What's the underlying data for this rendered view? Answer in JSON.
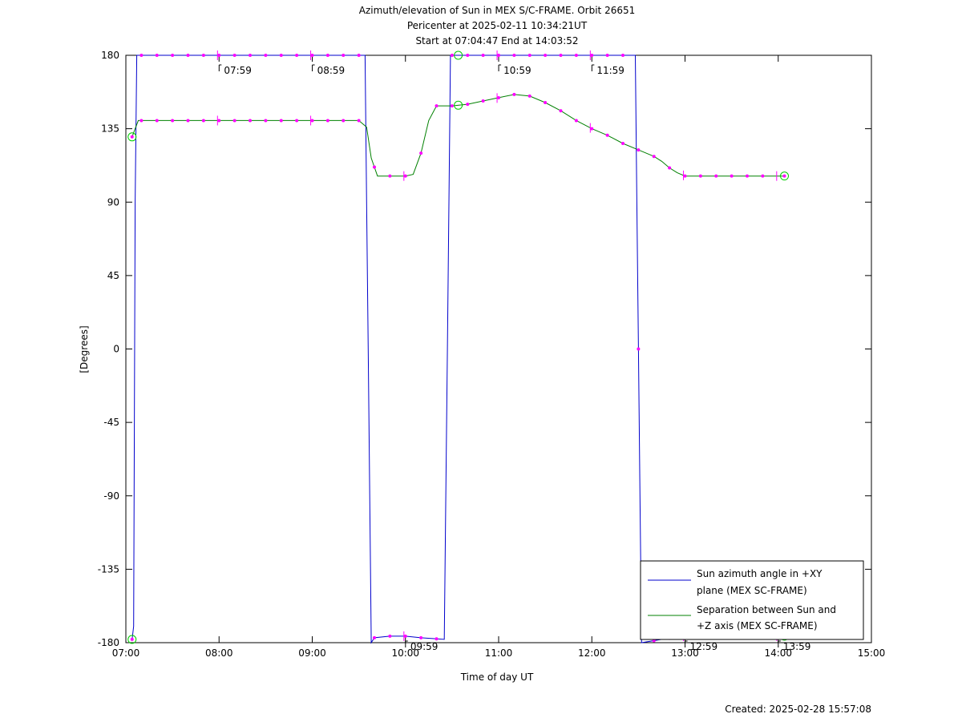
{
  "title_lines": [
    "Azimuth/elevation of Sun in MEX S/C-FRAME.  Orbit 26651",
    "Pericenter at 2025-02-11 10:34:21UT",
    "Start at 07:04:47 End at 14:03:52"
  ],
  "footer": {
    "created": "Created: 2025-02-28 15:57:08"
  },
  "chart_data": {
    "type": "line",
    "xlabel": "Time of day UT",
    "ylabel": "[Degrees]",
    "xlim": [
      "07:00",
      "15:00"
    ],
    "ylim": [
      -180,
      180
    ],
    "x_ticks": [
      "07:00",
      "08:00",
      "09:00",
      "10:00",
      "11:00",
      "12:00",
      "13:00",
      "14:00",
      "15:00"
    ],
    "y_ticks": [
      180,
      135,
      90,
      45,
      0,
      -45,
      -90,
      -135,
      -180
    ],
    "grid": false,
    "legend_position": "bottom-right",
    "series": [
      {
        "name": "Sun azimuth angle in +XY plane (MEX SC-FRAME)",
        "legend_lines": [
          "Sun azimuth angle in +XY",
          "plane (MEX SC-FRAME)"
        ],
        "color": "#0000cc",
        "points": [
          [
            "07:04",
            -178
          ],
          [
            "07:05",
            -170
          ],
          [
            "07:06",
            90
          ],
          [
            "07:07",
            180
          ],
          [
            "07:30",
            180
          ],
          [
            "08:00",
            180
          ],
          [
            "08:30",
            180
          ],
          [
            "09:00",
            180
          ],
          [
            "09:34",
            180
          ],
          [
            "09:35",
            90
          ],
          [
            "09:36",
            0
          ],
          [
            "09:37",
            -90
          ],
          [
            "09:38",
            -180
          ],
          [
            "09:40",
            -177
          ],
          [
            "09:50",
            -176
          ],
          [
            "10:00",
            -176
          ],
          [
            "10:10",
            -177
          ],
          [
            "10:25",
            -178
          ],
          [
            "10:26",
            -90
          ],
          [
            "10:27",
            0
          ],
          [
            "10:28",
            90
          ],
          [
            "10:29",
            180
          ],
          [
            "11:00",
            180
          ],
          [
            "11:30",
            180
          ],
          [
            "12:00",
            180
          ],
          [
            "12:28",
            180
          ],
          [
            "12:29",
            90
          ],
          [
            "12:30",
            0
          ],
          [
            "12:31",
            -90
          ],
          [
            "12:32",
            -180
          ],
          [
            "12:45",
            -178
          ],
          [
            "13:00",
            -176
          ],
          [
            "13:30",
            -176
          ],
          [
            "14:04",
            -176
          ]
        ]
      },
      {
        "name": "Separation between Sun and +Z axis (MEX SC-FRAME)",
        "legend_lines": [
          "Separation between Sun and",
          "+Z axis (MEX SC-FRAME)"
        ],
        "color": "#008000",
        "points": [
          [
            "07:04",
            130
          ],
          [
            "07:06",
            135
          ],
          [
            "07:08",
            140
          ],
          [
            "07:30",
            140
          ],
          [
            "08:00",
            140
          ],
          [
            "08:30",
            140
          ],
          [
            "09:00",
            140
          ],
          [
            "09:30",
            140
          ],
          [
            "09:35",
            136
          ],
          [
            "09:38",
            117
          ],
          [
            "09:42",
            106
          ],
          [
            "10:00",
            106
          ],
          [
            "10:05",
            107
          ],
          [
            "10:10",
            120
          ],
          [
            "10:15",
            140
          ],
          [
            "10:20",
            149
          ],
          [
            "10:30",
            149
          ],
          [
            "10:40",
            150
          ],
          [
            "10:50",
            152
          ],
          [
            "11:00",
            154
          ],
          [
            "11:10",
            156
          ],
          [
            "11:20",
            155
          ],
          [
            "11:30",
            151
          ],
          [
            "11:40",
            146
          ],
          [
            "11:50",
            140
          ],
          [
            "12:00",
            135
          ],
          [
            "12:10",
            131
          ],
          [
            "12:20",
            126
          ],
          [
            "12:30",
            122
          ],
          [
            "12:40",
            118
          ],
          [
            "12:45",
            115
          ],
          [
            "12:50",
            111
          ],
          [
            "12:55",
            108
          ],
          [
            "13:00",
            106
          ],
          [
            "13:30",
            106
          ],
          [
            "14:04",
            106
          ]
        ]
      }
    ],
    "marker_times": [
      "07:04",
      "07:10",
      "07:20",
      "07:30",
      "07:40",
      "07:50",
      "08:00",
      "08:10",
      "08:20",
      "08:30",
      "08:40",
      "08:50",
      "09:00",
      "09:10",
      "09:20",
      "09:30",
      "09:40",
      "09:50",
      "10:00",
      "10:10",
      "10:20",
      "10:30",
      "10:40",
      "10:50",
      "11:00",
      "11:10",
      "11:20",
      "11:30",
      "11:40",
      "11:50",
      "12:00",
      "12:10",
      "12:20",
      "12:30",
      "12:40",
      "12:50",
      "13:00",
      "13:10",
      "13:20",
      "13:30",
      "13:40",
      "13:50",
      "14:04"
    ],
    "hour_ticks": [
      "07:59",
      "08:59",
      "09:59",
      "10:59",
      "11:59",
      "12:59",
      "13:59"
    ],
    "circle_markers": [
      "07:04",
      "10:34",
      "14:04"
    ],
    "marker_color": "#ff00ff",
    "circle_color": "#00cc00"
  }
}
